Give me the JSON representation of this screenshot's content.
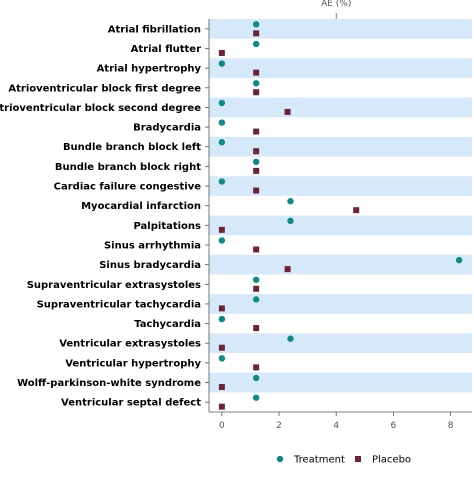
{
  "chart_data": {
    "type": "scatter",
    "title": "",
    "xlabel": "AE (%)",
    "xlim": [
      -0.45,
      8.75
    ],
    "xticks": [
      0,
      2,
      4,
      6,
      8
    ],
    "grid": "alternating horizontal row bands",
    "legend_position": "bottom-center",
    "categories": [
      "Atrial fibrillation",
      "Atrial flutter",
      "Atrial hypertrophy",
      "Atrioventricular block first degree",
      "Atrioventricular block second degree",
      "Bradycardia",
      "Bundle branch block left",
      "Bundle branch block right",
      "Cardiac failure congestive",
      "Myocardial infarction",
      "Palpitations",
      "Sinus arrhythmia",
      "Sinus bradycardia",
      "Supraventricular extrasystoles",
      "Supraventricular tachycardia",
      "Tachycardia",
      "Ventricular extrasystoles",
      "Ventricular hypertrophy",
      "Wolff-parkinson-white syndrome",
      "Ventricular septal defect"
    ],
    "series": [
      {
        "name": "Treatment",
        "marker": "circle",
        "color": "#0f8a84",
        "values": [
          1.2,
          1.2,
          0,
          1.2,
          0,
          0,
          0,
          1.2,
          0,
          2.4,
          2.4,
          0,
          8.3,
          1.2,
          1.2,
          0,
          2.4,
          0,
          1.2,
          1.2
        ]
      },
      {
        "name": "Placebo",
        "marker": "square",
        "color": "#6e2236",
        "values": [
          1.2,
          0,
          1.2,
          1.2,
          2.3,
          1.2,
          1.2,
          1.2,
          1.2,
          4.7,
          0,
          1.2,
          2.3,
          1.2,
          0,
          1.2,
          0,
          1.2,
          0,
          0
        ]
      }
    ],
    "band_color": "#d6e9fb"
  }
}
